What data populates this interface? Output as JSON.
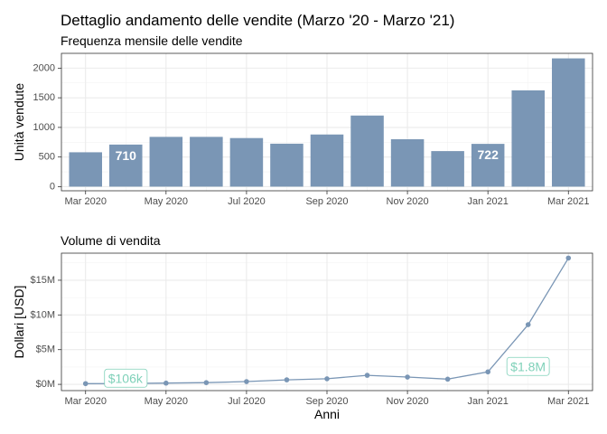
{
  "chart_data": [
    {
      "type": "bar",
      "title": "Dettaglio andamento delle vendite (Marzo '20 - Marzo '21)",
      "subtitle": "Frequenza mensile delle vendite",
      "xlabel": "",
      "ylabel": "Unità vendute",
      "ylim": [
        -70,
        2250
      ],
      "yticks": [
        0,
        500,
        1000,
        1500,
        2000
      ],
      "ytick_labels": [
        "0",
        "500",
        "1000",
        "1500",
        "2000"
      ],
      "x": [
        "2020-03",
        "2020-04",
        "2020-05",
        "2020-06",
        "2020-07",
        "2020-08",
        "2020-09",
        "2020-10",
        "2020-11",
        "2020-12",
        "2021-01",
        "2021-02",
        "2021-03"
      ],
      "values": [
        580,
        710,
        840,
        840,
        820,
        725,
        880,
        1200,
        800,
        600,
        722,
        1625,
        2165
      ],
      "xticks": [
        "2020-03",
        "2020-05",
        "2020-07",
        "2020-09",
        "2020-11",
        "2021-01",
        "2021-03"
      ],
      "xtick_labels": [
        "Mar 2020",
        "May 2020",
        "Jul 2020",
        "Sep 2020",
        "Nov 2020",
        "Jan 2021",
        "Mar 2021"
      ],
      "bar_color": "#7a96b5",
      "grid": true,
      "data_labels": [
        {
          "x": "2020-04",
          "text": "710"
        },
        {
          "x": "2021-01",
          "text": "722"
        }
      ]
    },
    {
      "type": "line",
      "subtitle": "Volume di vendita",
      "xlabel": "Anni",
      "ylabel": "Dollari [USD]",
      "ylim": [
        -0.9,
        18.9
      ],
      "yticks": [
        0,
        5,
        10,
        15
      ],
      "ytick_labels": [
        "$0M",
        "$5M",
        "$10M",
        "$15M"
      ],
      "x": [
        "2020-03",
        "2020-04",
        "2020-05",
        "2020-06",
        "2020-07",
        "2020-08",
        "2020-09",
        "2020-10",
        "2020-11",
        "2020-12",
        "2021-01",
        "2021-02",
        "2021-03"
      ],
      "values": [
        0.106,
        0.12,
        0.18,
        0.25,
        0.4,
        0.65,
        0.8,
        1.3,
        1.05,
        0.75,
        1.8,
        8.6,
        18.2
      ],
      "xticks": [
        "2020-03",
        "2020-05",
        "2020-07",
        "2020-09",
        "2020-11",
        "2021-01",
        "2021-03"
      ],
      "xtick_labels": [
        "Mar 2020",
        "May 2020",
        "Jul 2020",
        "Sep 2020",
        "Nov 2020",
        "Jan 2021",
        "Mar 2021"
      ],
      "line_color": "#7a96b5",
      "grid": true,
      "annotations": [
        {
          "x": "2020-03",
          "y": 0.106,
          "text": "$106k"
        },
        {
          "x": "2021-01",
          "y": 1.8,
          "text": "$1.8M"
        }
      ],
      "annotation_color": "#7fd1b9"
    }
  ]
}
